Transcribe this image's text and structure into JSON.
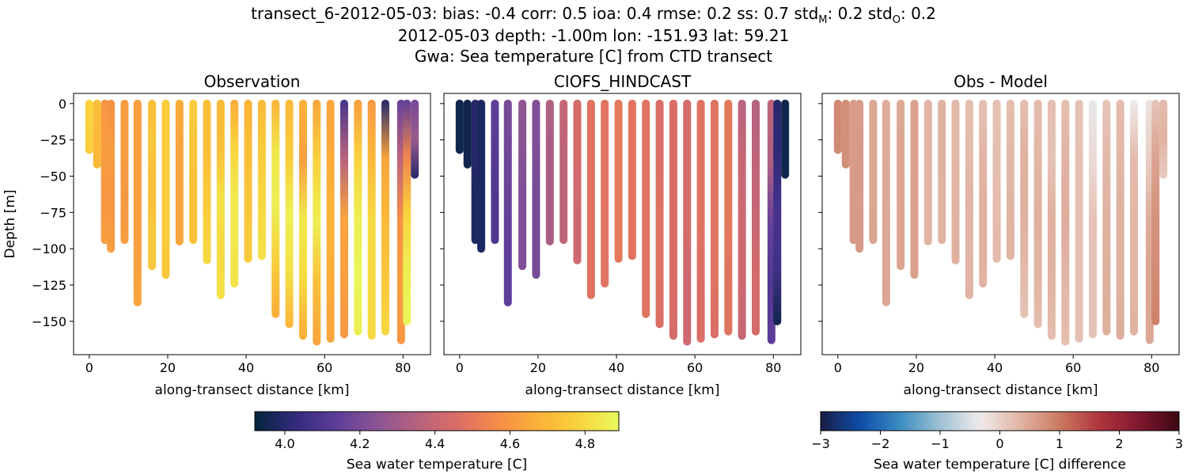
{
  "figure": {
    "title_lines": [
      "transect_6-2012-05-03: bias: -0.4  corr: 0.5  ioa: 0.4  rmse: 0.2  ss: 0.7  std",
      "2012-05-03 depth: -1.00m lon: -151.93 lat: 59.21",
      "Gwa: Sea temperature [C] from CTD transect"
    ],
    "title_stats_tail": {
      "std_m_label": "std",
      "std_m_sub": "M",
      "std_m_value": ": 0.2  std",
      "std_o_sub": "O",
      "std_o_value": ": 0.2"
    }
  },
  "colors": {
    "thermal_stops": [
      "#04253a",
      "#332a7e",
      "#5d3d9a",
      "#8a5494",
      "#b5627f",
      "#db6d67",
      "#f68c48",
      "#fbb138",
      "#f9d33d",
      "#e8fa5b"
    ],
    "balance_stops": [
      "#181c43",
      "#0e4ea9",
      "#3c8dc1",
      "#9fc1d2",
      "#f0ecec",
      "#e1b4a3",
      "#cb7a62",
      "#b0353d",
      "#801731",
      "#3c0912"
    ]
  },
  "chart_data": [
    {
      "type": "scatter",
      "title": "Observation",
      "xlabel": "along-transect distance [km]",
      "ylabel": "Depth [m]",
      "xlim": [
        -4,
        87
      ],
      "ylim": [
        -173,
        7
      ],
      "xticks": [
        0,
        20,
        40,
        60,
        80
      ],
      "yticks": [
        0,
        -25,
        -50,
        -75,
        -100,
        -125,
        -150
      ],
      "colormap": "thermal",
      "clim": [
        3.92,
        4.89
      ],
      "profiles": [
        {
          "x": 0.0,
          "bottom": -32,
          "values": [
            4.78,
            4.78,
            4.76
          ]
        },
        {
          "x": 2.0,
          "bottom": -42,
          "values": [
            4.72,
            4.7,
            4.7
          ]
        },
        {
          "x": 4.0,
          "bottom": -94,
          "values": [
            4.6,
            4.62,
            4.6,
            4.62
          ]
        },
        {
          "x": 5.5,
          "bottom": -100,
          "values": [
            4.58,
            4.62,
            4.6,
            4.62
          ]
        },
        {
          "x": 9.0,
          "bottom": -94,
          "values": [
            4.62,
            4.62,
            4.6,
            4.62
          ]
        },
        {
          "x": 12.3,
          "bottom": -137,
          "values": [
            4.62,
            4.62,
            4.62,
            4.62,
            4.64
          ]
        },
        {
          "x": 16.0,
          "bottom": -112,
          "values": [
            4.72,
            4.74,
            4.72,
            4.74,
            4.74
          ]
        },
        {
          "x": 19.5,
          "bottom": -118,
          "values": [
            4.76,
            4.76,
            4.76,
            4.76,
            4.74
          ]
        },
        {
          "x": 23.0,
          "bottom": -95,
          "values": [
            4.66,
            4.64,
            4.64,
            4.64
          ]
        },
        {
          "x": 26.5,
          "bottom": -94,
          "values": [
            4.76,
            4.74,
            4.72,
            4.72
          ]
        },
        {
          "x": 30.0,
          "bottom": -108,
          "values": [
            4.72,
            4.72,
            4.76,
            4.8
          ]
        },
        {
          "x": 33.5,
          "bottom": -132,
          "values": [
            4.7,
            4.72,
            4.82,
            4.8,
            4.82
          ]
        },
        {
          "x": 37.0,
          "bottom": -124,
          "values": [
            4.66,
            4.78,
            4.84,
            4.84,
            4.82
          ]
        },
        {
          "x": 40.5,
          "bottom": -107,
          "values": [
            4.68,
            4.72,
            4.74,
            4.76
          ]
        },
        {
          "x": 44.0,
          "bottom": -105,
          "values": [
            4.7,
            4.76,
            4.8,
            4.82
          ]
        },
        {
          "x": 47.5,
          "bottom": -145,
          "values": [
            4.68,
            4.84,
            4.86,
            4.76,
            4.66
          ]
        },
        {
          "x": 51.0,
          "bottom": -152,
          "values": [
            4.7,
            4.76,
            4.86,
            4.82,
            4.68
          ]
        },
        {
          "x": 54.5,
          "bottom": -160,
          "values": [
            4.68,
            4.62,
            4.84,
            4.8,
            4.66
          ]
        },
        {
          "x": 58.0,
          "bottom": -164,
          "values": [
            4.64,
            4.78,
            4.86,
            4.72,
            4.64
          ]
        },
        {
          "x": 61.5,
          "bottom": -162,
          "values": [
            4.64,
            4.66,
            4.68,
            4.66,
            4.64
          ]
        },
        {
          "x": 65.0,
          "bottom": -159,
          "values": [
            4.08,
            4.36,
            4.64,
            4.62,
            4.6
          ]
        },
        {
          "x": 68.5,
          "bottom": -157,
          "values": [
            4.62,
            4.78,
            4.86,
            4.88,
            4.86
          ]
        },
        {
          "x": 72.0,
          "bottom": -160,
          "values": [
            4.6,
            4.7,
            4.8,
            4.8,
            4.8
          ]
        },
        {
          "x": 75.5,
          "bottom": -157,
          "values": [
            4.0,
            4.64,
            4.7,
            4.74,
            4.8
          ]
        },
        {
          "x": 79.5,
          "bottom": -163,
          "values": [
            4.16,
            4.38,
            4.58,
            4.62,
            4.6
          ]
        },
        {
          "x": 81.0,
          "bottom": -150,
          "values": [
            4.14,
            4.54,
            4.78,
            4.86,
            4.88
          ]
        },
        {
          "x": 83.0,
          "bottom": -49,
          "values": [
            4.2,
            4.28,
            4.0
          ]
        }
      ]
    },
    {
      "type": "scatter",
      "title": "CIOFS_HINDCAST",
      "xlabel": "along-transect distance [km]",
      "ylabel": "",
      "xlim": [
        -4,
        87
      ],
      "ylim": [
        -173,
        7
      ],
      "xticks": [
        0,
        20,
        40,
        60,
        80
      ],
      "yticks": [
        0,
        -25,
        -50,
        -75,
        -100,
        -125,
        -150
      ],
      "colormap": "thermal",
      "clim": [
        3.92,
        4.89
      ],
      "profiles": [
        {
          "x": 0.0,
          "bottom": -32,
          "values": [
            3.95,
            3.95,
            3.95
          ]
        },
        {
          "x": 2.0,
          "bottom": -42,
          "values": [
            3.95,
            3.95,
            3.95
          ]
        },
        {
          "x": 4.0,
          "bottom": -94,
          "values": [
            4.0,
            4.0,
            3.98,
            3.98
          ]
        },
        {
          "x": 5.5,
          "bottom": -100,
          "values": [
            3.98,
            3.98,
            3.98,
            3.98
          ]
        },
        {
          "x": 9.0,
          "bottom": -94,
          "values": [
            4.14,
            4.12,
            4.1,
            4.1
          ]
        },
        {
          "x": 12.3,
          "bottom": -137,
          "values": [
            4.2,
            4.18,
            4.16,
            4.14,
            4.14
          ]
        },
        {
          "x": 16.0,
          "bottom": -112,
          "values": [
            4.26,
            4.24,
            4.22,
            4.22,
            4.22
          ]
        },
        {
          "x": 19.5,
          "bottom": -118,
          "values": [
            4.22,
            4.22,
            4.2,
            4.2,
            4.2
          ]
        },
        {
          "x": 23.0,
          "bottom": -95,
          "values": [
            4.34,
            4.32,
            4.32,
            4.32
          ]
        },
        {
          "x": 26.5,
          "bottom": -94,
          "values": [
            4.4,
            4.38,
            4.38,
            4.38
          ]
        },
        {
          "x": 30.0,
          "bottom": -108,
          "values": [
            4.44,
            4.44,
            4.42,
            4.42
          ]
        },
        {
          "x": 33.5,
          "bottom": -132,
          "values": [
            4.48,
            4.48,
            4.48,
            4.48,
            4.48
          ]
        },
        {
          "x": 37.0,
          "bottom": -124,
          "values": [
            4.48,
            4.48,
            4.48,
            4.48,
            4.48
          ]
        },
        {
          "x": 40.5,
          "bottom": -107,
          "values": [
            4.5,
            4.5,
            4.5,
            4.5
          ]
        },
        {
          "x": 44.0,
          "bottom": -105,
          "values": [
            4.48,
            4.48,
            4.48,
            4.48
          ]
        },
        {
          "x": 47.5,
          "bottom": -145,
          "values": [
            4.48,
            4.48,
            4.48,
            4.48,
            4.48
          ]
        },
        {
          "x": 51.0,
          "bottom": -152,
          "values": [
            4.46,
            4.46,
            4.48,
            4.48,
            4.46
          ]
        },
        {
          "x": 54.5,
          "bottom": -160,
          "values": [
            4.46,
            4.46,
            4.46,
            4.46,
            4.44
          ]
        },
        {
          "x": 58.0,
          "bottom": -164,
          "values": [
            4.44,
            4.44,
            4.44,
            4.42,
            4.42
          ]
        },
        {
          "x": 61.5,
          "bottom": -162,
          "values": [
            4.48,
            4.48,
            4.48,
            4.46,
            4.46
          ]
        },
        {
          "x": 65.0,
          "bottom": -159,
          "values": [
            4.48,
            4.48,
            4.48,
            4.48,
            4.46
          ]
        },
        {
          "x": 68.5,
          "bottom": -157,
          "values": [
            4.5,
            4.5,
            4.5,
            4.48,
            4.48
          ]
        },
        {
          "x": 72.0,
          "bottom": -160,
          "values": [
            4.36,
            4.4,
            4.42,
            4.42,
            4.4
          ]
        },
        {
          "x": 75.5,
          "bottom": -157,
          "values": [
            4.34,
            4.38,
            4.4,
            4.44,
            4.44
          ]
        },
        {
          "x": 79.5,
          "bottom": -163,
          "values": [
            4.38,
            4.34,
            4.16,
            4.1,
            4.14
          ]
        },
        {
          "x": 81.0,
          "bottom": -150,
          "values": [
            4.0,
            4.02,
            4.08,
            4.06,
            3.95
          ]
        },
        {
          "x": 83.0,
          "bottom": -49,
          "values": [
            3.95,
            3.95,
            3.95
          ]
        }
      ]
    },
    {
      "type": "scatter",
      "title": "Obs - Model",
      "xlabel": "along-transect distance [km]",
      "ylabel": "",
      "xlim": [
        -4,
        87
      ],
      "ylim": [
        -173,
        7
      ],
      "xticks": [
        0,
        20,
        40,
        60,
        80
      ],
      "yticks": [
        0,
        -25,
        -50,
        -75,
        -100,
        -125,
        -150
      ],
      "colormap": "balance",
      "clim": [
        -3,
        3
      ],
      "profiles": [
        {
          "x": 0.0,
          "bottom": -32,
          "values": [
            0.83,
            0.83,
            0.81
          ]
        },
        {
          "x": 2.0,
          "bottom": -42,
          "values": [
            0.77,
            0.75,
            0.75
          ]
        },
        {
          "x": 4.0,
          "bottom": -94,
          "values": [
            0.6,
            0.62,
            0.62,
            0.64
          ]
        },
        {
          "x": 5.5,
          "bottom": -100,
          "values": [
            0.6,
            0.64,
            0.62,
            0.64
          ]
        },
        {
          "x": 9.0,
          "bottom": -94,
          "values": [
            0.48,
            0.5,
            0.5,
            0.52
          ]
        },
        {
          "x": 12.3,
          "bottom": -137,
          "values": [
            0.42,
            0.44,
            0.46,
            0.48,
            0.5
          ]
        },
        {
          "x": 16.0,
          "bottom": -112,
          "values": [
            0.46,
            0.5,
            0.5,
            0.52,
            0.52
          ]
        },
        {
          "x": 19.5,
          "bottom": -118,
          "values": [
            0.54,
            0.54,
            0.56,
            0.56,
            0.54
          ]
        },
        {
          "x": 23.0,
          "bottom": -95,
          "values": [
            0.32,
            0.32,
            0.32,
            0.32
          ]
        },
        {
          "x": 26.5,
          "bottom": -94,
          "values": [
            0.36,
            0.36,
            0.34,
            0.34
          ]
        },
        {
          "x": 30.0,
          "bottom": -108,
          "values": [
            0.28,
            0.28,
            0.34,
            0.38
          ]
        },
        {
          "x": 33.5,
          "bottom": -132,
          "values": [
            0.22,
            0.24,
            0.34,
            0.32,
            0.34
          ]
        },
        {
          "x": 37.0,
          "bottom": -124,
          "values": [
            0.18,
            0.3,
            0.36,
            0.36,
            0.34
          ]
        },
        {
          "x": 40.5,
          "bottom": -107,
          "values": [
            0.18,
            0.22,
            0.24,
            0.26
          ]
        },
        {
          "x": 44.0,
          "bottom": -105,
          "values": [
            0.22,
            0.28,
            0.32,
            0.34
          ]
        },
        {
          "x": 47.5,
          "bottom": -145,
          "values": [
            0.2,
            0.36,
            0.38,
            0.28,
            0.18
          ]
        },
        {
          "x": 51.0,
          "bottom": -152,
          "values": [
            0.24,
            0.3,
            0.38,
            0.34,
            0.22
          ]
        },
        {
          "x": 54.5,
          "bottom": -160,
          "values": [
            0.22,
            0.16,
            0.38,
            0.34,
            0.22
          ]
        },
        {
          "x": 58.0,
          "bottom": -164,
          "values": [
            0.2,
            0.34,
            0.42,
            0.3,
            0.22
          ]
        },
        {
          "x": 61.5,
          "bottom": -162,
          "values": [
            0.16,
            0.18,
            0.2,
            0.2,
            0.18
          ]
        },
        {
          "x": 65.0,
          "bottom": -159,
          "values": [
            -0.4,
            -0.12,
            0.16,
            0.14,
            0.14
          ]
        },
        {
          "x": 68.5,
          "bottom": -157,
          "values": [
            0.12,
            0.28,
            0.36,
            0.4,
            0.38
          ]
        },
        {
          "x": 72.0,
          "bottom": -160,
          "values": [
            0.24,
            0.3,
            0.38,
            0.38,
            0.4
          ]
        },
        {
          "x": 75.5,
          "bottom": -157,
          "values": [
            -0.34,
            0.26,
            0.3,
            0.3,
            0.36
          ]
        },
        {
          "x": 79.5,
          "bottom": -163,
          "values": [
            -0.22,
            0.04,
            0.42,
            0.52,
            0.46
          ]
        },
        {
          "x": 81.0,
          "bottom": -150,
          "values": [
            0.14,
            0.52,
            0.7,
            0.8,
            0.93
          ]
        },
        {
          "x": 83.0,
          "bottom": -49,
          "values": [
            0.25,
            0.33,
            0.05
          ]
        }
      ]
    }
  ],
  "colorbars": [
    {
      "colormap": "thermal",
      "clim": [
        3.92,
        4.89
      ],
      "ticks": [
        4.0,
        4.2,
        4.4,
        4.6,
        4.8
      ],
      "tick_labels": [
        "4.0",
        "4.2",
        "4.4",
        "4.6",
        "4.8"
      ],
      "label": "Sea water temperature [C]"
    },
    {
      "colormap": "balance",
      "clim": [
        -3,
        3
      ],
      "ticks": [
        -3,
        -2,
        -1,
        0,
        1,
        2,
        3
      ],
      "tick_labels": [
        "−3",
        "−2",
        "−1",
        "0",
        "1",
        "2",
        "3"
      ],
      "label": "Sea water temperature [C] difference"
    }
  ]
}
